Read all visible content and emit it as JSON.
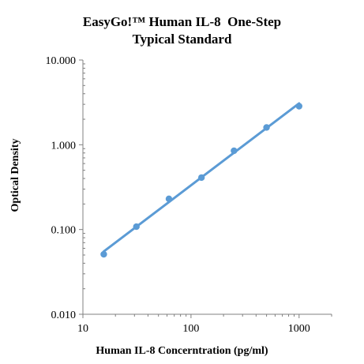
{
  "chart_data": {
    "type": "scatter",
    "title_lines": [
      "EasyGo!™ Human IL-8  One-Step",
      "Typical Standard"
    ],
    "xlabel": "Human IL-8 Concerntration (pg/ml)",
    "ylabel": "Optical Density",
    "x_scale": "log",
    "y_scale": "log",
    "xlim": [
      10,
      2000
    ],
    "ylim": [
      0.01,
      10
    ],
    "x_ticks": [
      10,
      100,
      1000
    ],
    "x_tick_labels": [
      "10",
      "100",
      "1000"
    ],
    "y_ticks": [
      0.01,
      0.1,
      1,
      10
    ],
    "y_tick_labels": [
      "0.010",
      "0.100",
      "1.000",
      "10.000"
    ],
    "grid": false,
    "legend": "none",
    "color": "#5B9BD5",
    "series": [
      {
        "x": [
          15.6,
          31.25,
          62.5,
          125,
          250,
          500,
          1000
        ],
        "y": [
          0.051,
          0.108,
          0.23,
          0.41,
          0.85,
          1.6,
          2.85
        ],
        "trendline": true
      }
    ]
  }
}
